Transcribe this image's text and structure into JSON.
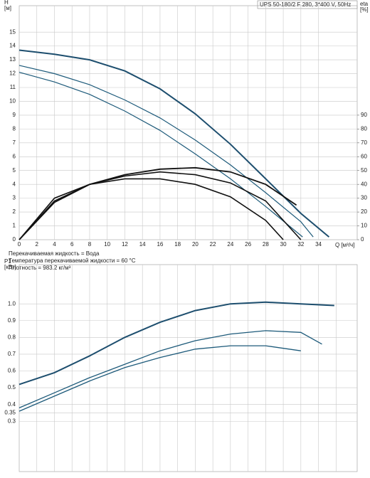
{
  "chart_data": [
    {
      "type": "line",
      "title": "UPS 50-180/2 F 280, 3*400 V, 50Hz",
      "ylabel": [
        "H",
        "[м]"
      ],
      "y2label": [
        "eta",
        "[%]"
      ],
      "xlabel": "Q [м³/ч]",
      "annotations": [
        "Перекачиваемая жидкость = Вода",
        "Температура перекачиваемой жидкости = 60 °C",
        "Плотность = 983.2 кг/м³"
      ],
      "xlim": [
        0,
        38.4
      ],
      "xticks": [
        0,
        2,
        4,
        6,
        8,
        10,
        12,
        14,
        16,
        18,
        20,
        22,
        24,
        26,
        28,
        30,
        32,
        34
      ],
      "ylim": [
        0,
        16.5
      ],
      "yticks": [
        0,
        1,
        2,
        3,
        4,
        5,
        6,
        7,
        8,
        9,
        10,
        11,
        12,
        13,
        14,
        15
      ],
      "y2lim": [
        0,
        165
      ],
      "y2ticks": [
        0,
        10,
        20,
        30,
        40,
        50,
        60,
        70,
        80,
        90
      ],
      "grid": true,
      "series": [
        {
          "color": "#1d4e6e",
          "width": 2,
          "x": [
            0,
            4,
            8,
            12,
            16,
            20,
            24,
            28,
            32,
            35.2
          ],
          "values": [
            13.7,
            13.4,
            13.0,
            12.2,
            10.9,
            9.1,
            6.9,
            4.4,
            1.9,
            0.2
          ]
        },
        {
          "color": "#1d5a7a",
          "width": 1.2,
          "x": [
            0,
            4,
            8,
            12,
            16,
            20,
            24,
            28,
            32,
            33.4
          ],
          "values": [
            12.6,
            12.0,
            11.2,
            10.1,
            8.8,
            7.2,
            5.4,
            3.4,
            1.3,
            0.2
          ]
        },
        {
          "color": "#1d5a7a",
          "width": 1.2,
          "x": [
            0,
            4,
            8,
            12,
            16,
            20,
            24,
            28,
            32.2
          ],
          "values": [
            12.1,
            11.4,
            10.5,
            9.3,
            7.9,
            6.2,
            4.4,
            2.4,
            0.2
          ]
        },
        {
          "color": "#111111",
          "width": 1.8,
          "axis": "y2",
          "x": [
            0,
            4,
            8,
            12,
            16,
            20,
            24,
            28,
            31.5
          ],
          "values": [
            0,
            27,
            40,
            47,
            51,
            52,
            49,
            40,
            25
          ]
        },
        {
          "color": "#111111",
          "width": 1.6,
          "axis": "y2",
          "x": [
            0,
            4,
            8,
            12,
            16,
            20,
            24,
            28,
            32
          ],
          "values": [
            0,
            28,
            40,
            46,
            49,
            47,
            41,
            28,
            0
          ]
        },
        {
          "color": "#111111",
          "width": 1.6,
          "axis": "y2",
          "x": [
            0,
            4,
            8,
            12,
            16,
            20,
            24,
            28,
            30
          ],
          "values": [
            0,
            30,
            40,
            44,
            44,
            40,
            31,
            14,
            0
          ]
        }
      ]
    },
    {
      "type": "line",
      "ylabel": [
        "P1",
        "[кВт]"
      ],
      "xlim": [
        0,
        38.4
      ],
      "xgrid": [
        0,
        2,
        4,
        6,
        8,
        10,
        12,
        14,
        16,
        18,
        20,
        22,
        24,
        26,
        28,
        30,
        32,
        34,
        36
      ],
      "ylim": [
        0,
        1.2
      ],
      "yticks": [
        0.3,
        0.35,
        0.4,
        0.5,
        0.6,
        0.7,
        0.8,
        0.9,
        {
          "value": 1,
          "label": "1.0"
        }
      ],
      "grid": true,
      "series": [
        {
          "color": "#1d4e6e",
          "width": 2,
          "x": [
            0,
            4,
            8,
            12,
            16,
            20,
            24,
            28,
            32,
            35.8
          ],
          "values": [
            0.52,
            0.59,
            0.69,
            0.8,
            0.89,
            0.96,
            1.0,
            1.01,
            1.0,
            0.99
          ]
        },
        {
          "color": "#1d5a7a",
          "width": 1.3,
          "x": [
            0,
            4,
            8,
            12,
            16,
            20,
            24,
            28,
            32,
            34.4
          ],
          "values": [
            0.38,
            0.47,
            0.56,
            0.64,
            0.72,
            0.78,
            0.82,
            0.84,
            0.83,
            0.76
          ]
        },
        {
          "color": "#1d5a7a",
          "width": 1.3,
          "x": [
            0,
            4,
            8,
            12,
            16,
            20,
            24,
            28,
            32
          ],
          "values": [
            0.36,
            0.45,
            0.54,
            0.62,
            0.68,
            0.73,
            0.75,
            0.75,
            0.72
          ]
        }
      ]
    }
  ]
}
